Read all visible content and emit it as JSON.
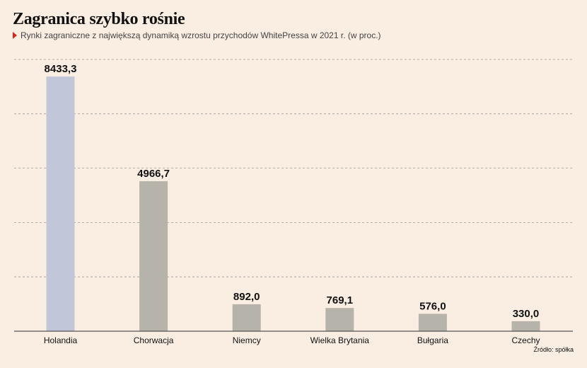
{
  "header": {
    "title": "Zagranica szybko rośnie",
    "subtitle": "Rynki zagraniczne z największą dynamiką wzrostu przychodów WhitePressa w 2021 r. (w proc.)"
  },
  "source": "Źródło: spółka",
  "colors": {
    "background": "#faeee2",
    "highlight_bar": "#c1c6d8",
    "bar": "#b6b4aa",
    "grid": "#999999",
    "marker": "#d7261e"
  },
  "chart_data": {
    "type": "bar",
    "categories": [
      "Holandia",
      "Chorwacja",
      "Niemcy",
      "Wielka Brytania",
      "Bułgaria",
      "Czechy"
    ],
    "values": [
      8433.3,
      4966.7,
      892.0,
      769.1,
      576.0,
      330.0
    ],
    "value_labels": [
      "8433,3",
      "4966,7",
      "892,0",
      "769,1",
      "576,0",
      "330,0"
    ],
    "highlight_index": 0,
    "ylim": [
      0,
      9000
    ],
    "gridlines": [
      1800,
      3600,
      5400,
      7200,
      9000
    ],
    "grid": true,
    "legend": "none"
  }
}
